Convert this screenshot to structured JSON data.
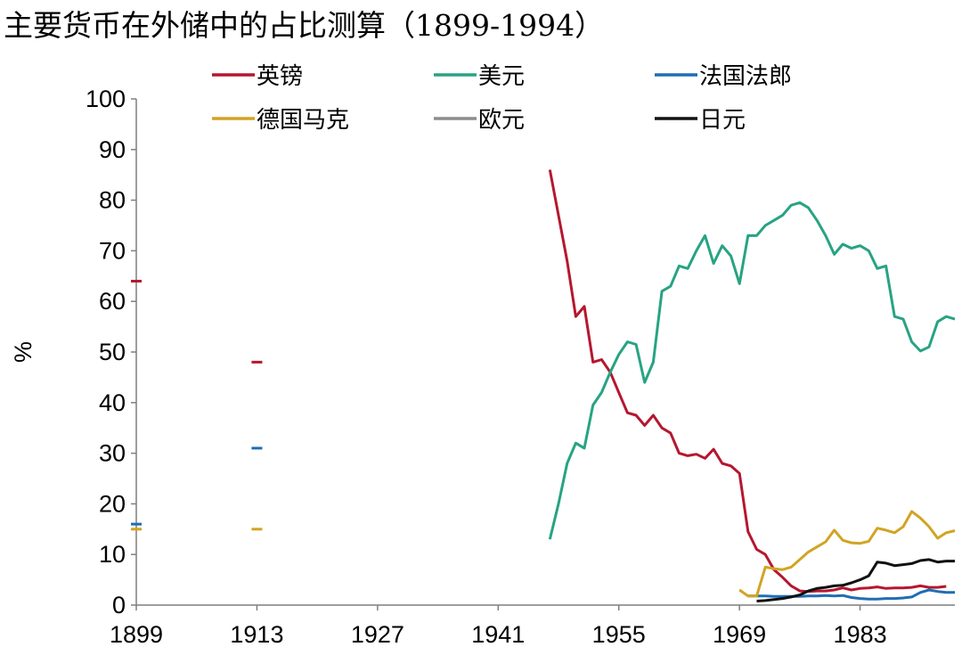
{
  "chart_data": {
    "type": "line",
    "title": "主要货币在外储中的占比测算（1899-1994）",
    "ylabel": "%",
    "xlabel": "",
    "ylim": [
      0,
      100
    ],
    "xlim": [
      1899,
      1994
    ],
    "yticks": [
      0,
      10,
      20,
      30,
      40,
      50,
      60,
      70,
      80,
      90,
      100
    ],
    "xticks": [
      1899,
      1913,
      1927,
      1941,
      1955,
      1969,
      1983
    ],
    "grid": false,
    "legend_position": "top",
    "series": [
      {
        "name": "英镑",
        "color": "#b5172e",
        "marks": [
          {
            "x": 1899,
            "y": 64
          },
          {
            "x": 1913,
            "y": 48
          }
        ],
        "points": [
          [
            1947,
            86
          ],
          [
            1948,
            77
          ],
          [
            1949,
            68
          ],
          [
            1950,
            57
          ],
          [
            1951,
            59
          ],
          [
            1952,
            48
          ],
          [
            1953,
            48.5
          ],
          [
            1954,
            46
          ],
          [
            1955,
            42
          ],
          [
            1956,
            38
          ],
          [
            1957,
            37.5
          ],
          [
            1958,
            35.5
          ],
          [
            1959,
            37.5
          ],
          [
            1960,
            35
          ],
          [
            1961,
            34
          ],
          [
            1962,
            30
          ],
          [
            1963,
            29.5
          ],
          [
            1964,
            29.8
          ],
          [
            1965,
            29
          ],
          [
            1966,
            30.8
          ],
          [
            1967,
            28
          ],
          [
            1968,
            27.5
          ],
          [
            1969,
            26
          ],
          [
            1970,
            14.5
          ],
          [
            1971,
            11
          ],
          [
            1972,
            10
          ],
          [
            1973,
            7
          ],
          [
            1974,
            5.5
          ],
          [
            1975,
            3.8
          ],
          [
            1976,
            2.8
          ],
          [
            1977,
            2.7
          ],
          [
            1978,
            2.8
          ],
          [
            1979,
            2.8
          ],
          [
            1980,
            3
          ],
          [
            1981,
            3.4
          ],
          [
            1982,
            3
          ],
          [
            1983,
            3.3
          ],
          [
            1984,
            3.4
          ],
          [
            1985,
            3.6
          ],
          [
            1986,
            3.3
          ],
          [
            1987,
            3.4
          ],
          [
            1988,
            3.4
          ],
          [
            1989,
            3.5
          ],
          [
            1990,
            3.8
          ],
          [
            1991,
            3.5
          ],
          [
            1992,
            3.5
          ],
          [
            1993,
            3.7
          ]
        ]
      },
      {
        "name": "美元",
        "color": "#27a383",
        "marks": [],
        "points": [
          [
            1947,
            13
          ],
          [
            1948,
            20
          ],
          [
            1949,
            28
          ],
          [
            1950,
            32
          ],
          [
            1951,
            31
          ],
          [
            1952,
            39.5
          ],
          [
            1953,
            42
          ],
          [
            1954,
            46
          ],
          [
            1955,
            49.5
          ],
          [
            1956,
            52
          ],
          [
            1957,
            51.5
          ],
          [
            1958,
            44
          ],
          [
            1959,
            48
          ],
          [
            1960,
            62
          ],
          [
            1961,
            63
          ],
          [
            1962,
            67
          ],
          [
            1963,
            66.5
          ],
          [
            1964,
            70
          ],
          [
            1965,
            73
          ],
          [
            1966,
            67.5
          ],
          [
            1967,
            71
          ],
          [
            1968,
            69
          ],
          [
            1969,
            63.5
          ],
          [
            1970,
            73
          ],
          [
            1971,
            73
          ],
          [
            1972,
            75
          ],
          [
            1973,
            76
          ],
          [
            1974,
            77
          ],
          [
            1975,
            79
          ],
          [
            1976,
            79.5
          ],
          [
            1977,
            78.5
          ],
          [
            1978,
            76
          ],
          [
            1979,
            73
          ],
          [
            1980,
            69.3
          ],
          [
            1981,
            71.3
          ],
          [
            1982,
            70.5
          ],
          [
            1983,
            71
          ],
          [
            1984,
            70
          ],
          [
            1985,
            66.5
          ],
          [
            1986,
            67
          ],
          [
            1987,
            57
          ],
          [
            1988,
            56.5
          ],
          [
            1989,
            52
          ],
          [
            1990,
            50.2
          ],
          [
            1991,
            51
          ],
          [
            1992,
            56
          ],
          [
            1993,
            57
          ],
          [
            1994,
            56.5
          ]
        ]
      },
      {
        "name": "法国法郎",
        "color": "#1f6db5",
        "marks": [
          {
            "x": 1899,
            "y": 16
          },
          {
            "x": 1913,
            "y": 31
          }
        ],
        "points": [
          [
            1970,
            1.8
          ],
          [
            1971,
            1.8
          ],
          [
            1972,
            1.8
          ],
          [
            1973,
            1.7
          ],
          [
            1974,
            1.7
          ],
          [
            1975,
            1.7
          ],
          [
            1976,
            1.7
          ],
          [
            1977,
            1.8
          ],
          [
            1978,
            1.8
          ],
          [
            1979,
            1.9
          ],
          [
            1980,
            1.8
          ],
          [
            1981,
            1.9
          ],
          [
            1982,
            1.5
          ],
          [
            1983,
            1.3
          ],
          [
            1984,
            1.2
          ],
          [
            1985,
            1.2
          ],
          [
            1986,
            1.3
          ],
          [
            1987,
            1.3
          ],
          [
            1988,
            1.4
          ],
          [
            1989,
            1.6
          ],
          [
            1990,
            2.5
          ],
          [
            1991,
            3
          ],
          [
            1992,
            2.7
          ],
          [
            1993,
            2.5
          ],
          [
            1994,
            2.5
          ]
        ]
      },
      {
        "name": "德国马克",
        "color": "#d1a423",
        "marks": [
          {
            "x": 1899,
            "y": 15
          },
          {
            "x": 1913,
            "y": 15
          }
        ],
        "points": [
          [
            1969,
            3
          ],
          [
            1970,
            1.8
          ],
          [
            1971,
            1.8
          ],
          [
            1972,
            7.5
          ],
          [
            1973,
            7.2
          ],
          [
            1974,
            7
          ],
          [
            1975,
            7.5
          ],
          [
            1976,
            9
          ],
          [
            1977,
            10.5
          ],
          [
            1978,
            11.5
          ],
          [
            1979,
            12.5
          ],
          [
            1980,
            14.8
          ],
          [
            1981,
            12.8
          ],
          [
            1982,
            12.3
          ],
          [
            1983,
            12.2
          ],
          [
            1984,
            12.6
          ],
          [
            1985,
            15.2
          ],
          [
            1986,
            14.8
          ],
          [
            1987,
            14.3
          ],
          [
            1988,
            15.5
          ],
          [
            1989,
            18.5
          ],
          [
            1990,
            17.2
          ],
          [
            1991,
            15.5
          ],
          [
            1992,
            13.2
          ],
          [
            1993,
            14.3
          ],
          [
            1994,
            14.7
          ]
        ]
      },
      {
        "name": "欧元",
        "color": "#8c8c8c",
        "marks": [],
        "points": []
      },
      {
        "name": "日元",
        "color": "#111111",
        "marks": [],
        "points": [
          [
            1971,
            0.8
          ],
          [
            1972,
            0.9
          ],
          [
            1973,
            1.1
          ],
          [
            1974,
            1.3
          ],
          [
            1975,
            1.6
          ],
          [
            1976,
            2
          ],
          [
            1977,
            2.8
          ],
          [
            1978,
            3.3
          ],
          [
            1979,
            3.5
          ],
          [
            1980,
            3.8
          ],
          [
            1981,
            3.9
          ],
          [
            1982,
            4.4
          ],
          [
            1983,
            5
          ],
          [
            1984,
            5.8
          ],
          [
            1985,
            8.5
          ],
          [
            1986,
            8.3
          ],
          [
            1987,
            7.8
          ],
          [
            1988,
            8
          ],
          [
            1989,
            8.2
          ],
          [
            1990,
            8.8
          ],
          [
            1991,
            9
          ],
          [
            1992,
            8.5
          ],
          [
            1993,
            8.7
          ],
          [
            1994,
            8.7
          ]
        ]
      }
    ]
  }
}
